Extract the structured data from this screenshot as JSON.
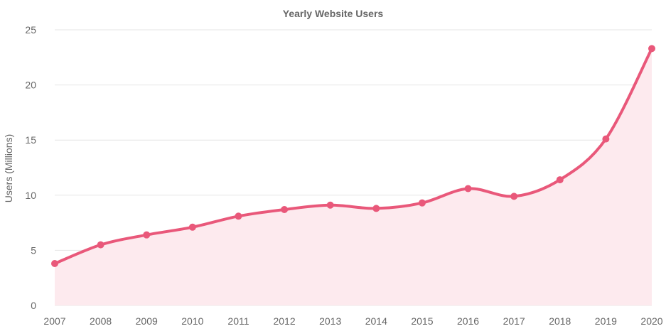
{
  "chart_data": {
    "type": "area",
    "title": "Yearly Website Users",
    "xlabel": "",
    "ylabel": "Users (Millions)",
    "categories": [
      "2007",
      "2008",
      "2009",
      "2010",
      "2011",
      "2012",
      "2013",
      "2014",
      "2015",
      "2016",
      "2017",
      "2018",
      "2019",
      "2020"
    ],
    "series": [
      {
        "values": [
          3.8,
          5.5,
          6.4,
          7.1,
          8.1,
          8.7,
          9.1,
          8.8,
          9.3,
          10.6,
          9.9,
          11.4,
          15.1,
          23.3
        ]
      }
    ],
    "yticks": [
      0,
      5,
      10,
      15,
      20,
      25
    ],
    "ylim": [
      0,
      25
    ],
    "grid": true,
    "colors": {
      "line": "#e9587a",
      "fill": "#fdeaee",
      "grid": "#e6e6e6",
      "axis_text": "#666666"
    }
  }
}
